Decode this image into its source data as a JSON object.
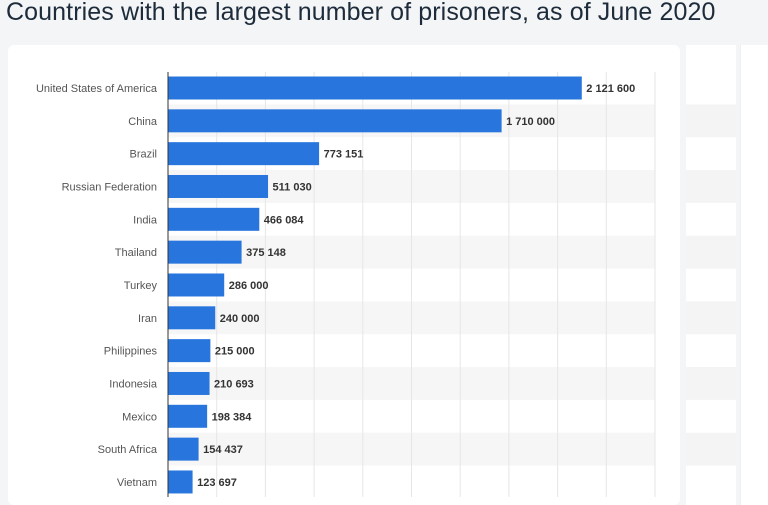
{
  "chart_data": {
    "type": "bar",
    "orientation": "horizontal",
    "title": "Countries with the largest number of prisoners, as of June 2020",
    "xlabel": "",
    "ylabel": "",
    "xlim": [
      0,
      2500000
    ],
    "grid": true,
    "bar_color": "#2876dd",
    "categories": [
      "United States of America",
      "China",
      "Brazil",
      "Russian Federation",
      "India",
      "Thailand",
      "Turkey",
      "Iran",
      "Philippines",
      "Indonesia",
      "Mexico",
      "South Africa",
      "Vietnam"
    ],
    "values": [
      2121600,
      1710000,
      773151,
      511030,
      466084,
      375148,
      286000,
      240000,
      215000,
      210693,
      198384,
      154437,
      123697
    ],
    "value_labels": [
      "2 121 600",
      "1 710 000",
      "773 151",
      "511 030",
      "466 084",
      "375 148",
      "286 000",
      "240 000",
      "215 000",
      "210 693",
      "198 384",
      "154 437",
      "123 697"
    ]
  }
}
